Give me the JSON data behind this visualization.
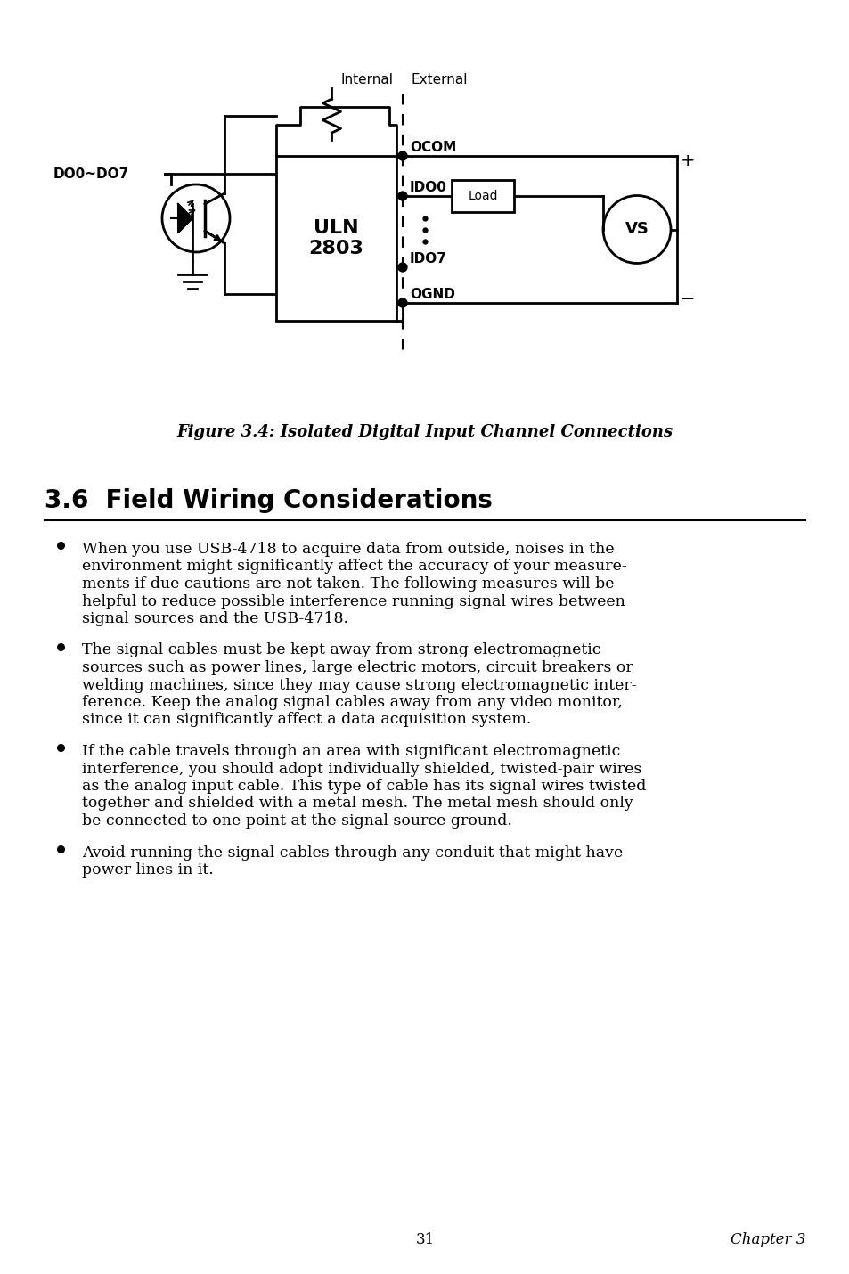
{
  "fig_caption": "Figure 3.4: Isolated Digital Input Channel Connections",
  "section_title": "3.6  Field Wiring Considerations",
  "wrapped_bullets": [
    [
      "When you use USB-4718 to acquire data from outside, noises in the",
      "environment might significantly affect the accuracy of your measure-",
      "ments if due cautions are not taken. The following measures will be",
      "helpful to reduce possible interference running signal wires between",
      "signal sources and the USB-4718."
    ],
    [
      "The signal cables must be kept away from strong electromagnetic",
      "sources such as power lines, large electric motors, circuit breakers or",
      "welding machines, since they may cause strong electromagnetic inter-",
      "ference. Keep the analog signal cables away from any video monitor,",
      "since it can significantly affect a data acquisition system."
    ],
    [
      "If the cable travels through an area with significant electromagnetic",
      "interference, you should adopt individually shielded, twisted-pair wires",
      "as the analog input cable. This type of cable has its signal wires twisted",
      "together and shielded with a metal mesh. The metal mesh should only",
      "be connected to one point at the signal source ground."
    ],
    [
      "Avoid running the signal cables through any conduit that might have",
      "power lines in it."
    ]
  ],
  "page_number": "31",
  "chapter": "Chapter 3",
  "bg_color": "#ffffff",
  "text_color": "#000000",
  "lbl_internal": "Internal",
  "lbl_external": "External",
  "lbl_do0do7": "DO0~DO7",
  "lbl_uln": "ULN\n2803",
  "lbl_ocom": "OCOM",
  "lbl_ido0": "IDO0",
  "lbl_ido7": "IDO7",
  "lbl_ognd": "OGND",
  "lbl_load": "Load",
  "lbl_vs": "VS",
  "lbl_plus": "+",
  "lbl_minus": "−"
}
